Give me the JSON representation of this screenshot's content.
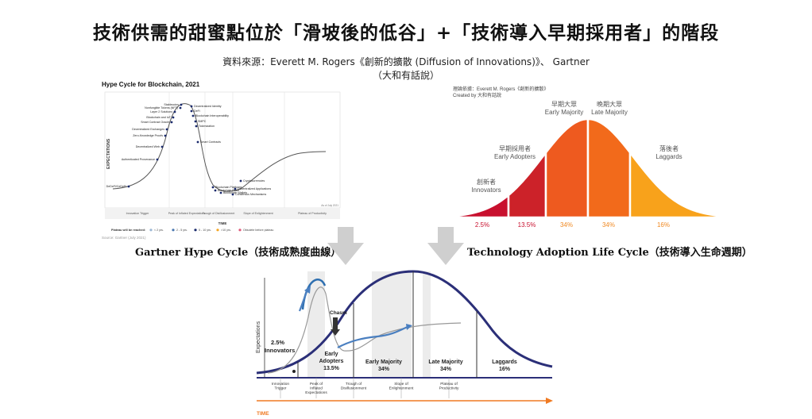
{
  "title": "技術供需的甜蜜點位於「滑坡後的低谷」+「技術導入早期採用者」的階段",
  "source_line1": "資料來源：Everett M. Rogers《創新的擴散 (Diffusion of Innovations)》、 Gartner",
  "source_line2": "（大和有話說）",
  "hype": {
    "title": "Hype Cycle for Blockchain, 2021",
    "ylabel": "EXPECTATIONS",
    "xlabel": "TIME",
    "source": "Source: Gartner (July 2021)",
    "date_note": "As of July 2021",
    "legend_title": "Plateau will be reached:",
    "legend": [
      "< 2 yrs.",
      "2 - 5 yrs.",
      "5 - 10 yrs.",
      ">10 yrs.",
      "Obsolete before plateau"
    ],
    "phases": [
      "Innovation Trigger",
      "Peak of Inflated Expectations",
      "Trough of Disillusionment",
      "Slope of Enlightenment",
      "Plateau of Productivity"
    ],
    "points": [
      "Stablecoins",
      "Nonfungible Tokens (NFT)",
      "Layer 2 Solutions",
      "Blockchain and IoT",
      "Smart Contract Oracle",
      "Decentralized Exchanges",
      "Zero-Knowledge Proofs",
      "Decentralized Web",
      "Authenticated Provenance",
      "DeDeFi/CeDeFi",
      "Decentralized Identity",
      "DeFi",
      "Blockchain Interoperability",
      "SMPC",
      "Tokenization",
      "Smart Contracts",
      "Blockchain Platforms",
      "Blockchain PaaS",
      "Blockchain Wallets",
      "Consensus Mechanisms",
      "Decentralized Applications",
      "Cryptocurrencies"
    ]
  },
  "adoption": {
    "note1": "理論依據：Everett M. Rogers《創新的擴散》",
    "note2": "Created by 大和有話說",
    "segments": [
      {
        "zh": "創新者",
        "en": "Innovators",
        "pct": "2.5%",
        "color": "#c8102e"
      },
      {
        "zh": "早期採用者",
        "en": "Early Adopters",
        "pct": "13.5%",
        "color": "#cc2229"
      },
      {
        "zh": "早期大眾",
        "en": "Early Majority",
        "pct": "34%",
        "color": "#ee5a1f"
      },
      {
        "zh": "晚期大眾",
        "en": "Late Majority",
        "pct": "34%",
        "color": "#f26a1b"
      },
      {
        "zh": "落後者",
        "en": "Laggards",
        "pct": "16%",
        "color": "#f8a21b"
      }
    ]
  },
  "caption_left": "Gartner Hype Cycle（技術成熟度曲線）",
  "caption_right": "Technology Adoption Life Cycle（技術導入生命週期）",
  "combined": {
    "ylabel": "Expectations",
    "chasm": "Chasm",
    "innovators": [
      "2.5%",
      "Innovators"
    ],
    "segments": [
      [
        "Early",
        "Adopters",
        "13.5%"
      ],
      [
        "Early Majority",
        "34%"
      ],
      [
        "Late Majority",
        "34%"
      ],
      [
        "Laggards",
        "16%"
      ]
    ],
    "phases": [
      [
        "Innovation",
        "Trigger"
      ],
      [
        "Peak of",
        "Inflated",
        "Expectations"
      ],
      [
        "Trough of",
        "Disillusionment"
      ],
      [
        "Slope of",
        "Enlightenment"
      ],
      [
        "Plateau of",
        "Productivity"
      ]
    ],
    "time": "TIME"
  }
}
